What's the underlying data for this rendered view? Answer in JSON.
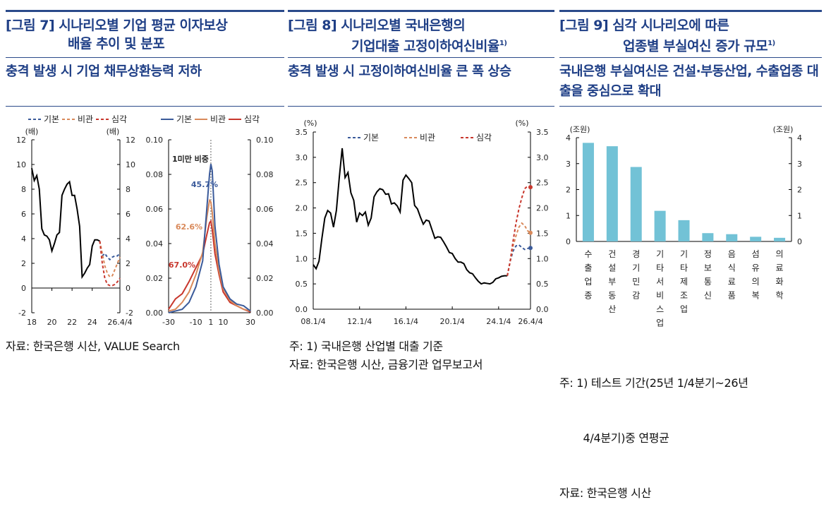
{
  "figures": [
    {
      "title_line1": "[그림 7] 시나리오별 기업 평균 이자보상",
      "title_line2": "배율 추이 및 분포",
      "title_sup": "",
      "subtitle": "충격 발생 시 기업 채무상환능력 저하",
      "notes": [
        "자료: 한국은행 시산, VALUE Search"
      ]
    },
    {
      "title_line1": "[그림 8] 시나리오별 국내은행의",
      "title_line2": "기업대출 고정이하여신비율",
      "title_sup": "1)",
      "subtitle": "충격 발생 시 고정이하여신비율 큰 폭 상승",
      "notes": [
        "주: 1) 국내은행 산업별 대출 기준",
        "자료: 한국은행 시산, 금융기관 업무보고서"
      ]
    },
    {
      "title_line1": "[그림 9] 심각 시나리오에 따른",
      "title_line2": "업종별 부실여신 증가 규모",
      "title_sup": "1)",
      "subtitle": "국내은행 부실여신은 건설·부동산업, 수출업종 대출을 중심으로 확대",
      "notes": [
        "주: 1) 테스트 기간(25년 1/4분기~26년",
        "       4/4분기)중 연평균",
        "자료: 한국은행 시산"
      ]
    }
  ],
  "colors": {
    "accent": "#2a4a8a",
    "base": "#3a5a9a",
    "pessimistic": "#d9895a",
    "severe": "#c8372d",
    "bar": "#72c2d6",
    "history": "#000000"
  },
  "chart_data": [
    {
      "type": "line",
      "unit_left": "(배)",
      "unit_right": "(배)",
      "ylim": [
        -2,
        12
      ],
      "yticks": [
        -2,
        0,
        2,
        4,
        6,
        8,
        10,
        12
      ],
      "xticks": [
        "18",
        "20",
        "22",
        "24",
        "26.4/4"
      ],
      "legend": [
        "기본",
        "비관",
        "심각"
      ],
      "legend_placement": "top",
      "history": {
        "start": "18.1/4",
        "values": [
          9.7,
          8.7,
          9.1,
          8.0,
          4.8,
          4.3,
          4.2,
          3.9,
          3.0,
          3.6,
          4.3,
          4.5,
          7.5,
          8.0,
          8.4,
          8.6,
          7.5,
          7.5,
          6.4,
          5.0,
          0.9,
          1.2,
          1.6,
          1.9,
          3.4,
          3.9,
          3.9,
          3.8
        ]
      },
      "series": [
        {
          "name": "기본",
          "start": "24.4/4",
          "values": [
            3.8,
            2.6,
            2.8,
            2.5,
            2.3,
            2.5,
            2.6,
            2.6,
            2.8
          ]
        },
        {
          "name": "비관",
          "start": "24.4/4",
          "values": [
            3.8,
            2.8,
            1.8,
            1.2,
            0.9,
            1.0,
            1.5,
            2.0,
            2.5
          ]
        },
        {
          "name": "심각",
          "start": "24.4/4",
          "values": [
            3.8,
            2.0,
            0.8,
            0.3,
            0.2,
            0.2,
            0.3,
            0.5,
            0.8
          ]
        }
      ]
    },
    {
      "type": "line",
      "ylim": [
        0,
        0.1
      ],
      "yticks": [
        "0.00",
        "0.02",
        "0.04",
        "0.06",
        "0.08",
        "0.10"
      ],
      "xlim": [
        -30,
        30
      ],
      "xticks": [
        -30,
        -10,
        1,
        10,
        30
      ],
      "legend": [
        "기본",
        "비관",
        "심각"
      ],
      "legend_placement": "top",
      "reference_line_x": 1,
      "annotations": {
        "title": "1미만 비중",
        "base": "45.7%",
        "pessimistic": "62.6%",
        "severe": "67.0%"
      },
      "x": [
        -30,
        -25,
        -20,
        -15,
        -10,
        -5,
        -2,
        0,
        1,
        2,
        4,
        7,
        10,
        15,
        20,
        25,
        30
      ],
      "series": [
        {
          "name": "기본",
          "values": [
            0,
            0.001,
            0.002,
            0.006,
            0.015,
            0.03,
            0.06,
            0.08,
            0.086,
            0.082,
            0.05,
            0.028,
            0.015,
            0.008,
            0.005,
            0.004,
            0.001
          ]
        },
        {
          "name": "비관",
          "values": [
            0.001,
            0.002,
            0.006,
            0.012,
            0.022,
            0.035,
            0.055,
            0.065,
            0.064,
            0.058,
            0.04,
            0.024,
            0.014,
            0.007,
            0.004,
            0.002,
            0.001
          ]
        },
        {
          "name": "심각",
          "values": [
            0.002,
            0.008,
            0.011,
            0.018,
            0.026,
            0.034,
            0.045,
            0.052,
            0.053,
            0.048,
            0.034,
            0.022,
            0.012,
            0.006,
            0.004,
            0.002,
            0.0005
          ]
        }
      ]
    },
    {
      "type": "line",
      "unit_left": "(%)",
      "unit_right": "(%)",
      "ylim": [
        0,
        3.5
      ],
      "yticks": [
        "0.0",
        "0.5",
        "1.0",
        "1.5",
        "2.0",
        "2.5",
        "3.0",
        "3.5"
      ],
      "xticks": [
        "08.1/4",
        "12.1/4",
        "16.1/4",
        "20.1/4",
        "24.1/4",
        "26.4/4"
      ],
      "legend": [
        "기본",
        "비관",
        "심각"
      ],
      "legend_placement": "top",
      "history": {
        "start": "08.1/4",
        "values": [
          0.88,
          0.8,
          0.95,
          1.4,
          1.8,
          1.95,
          1.9,
          1.62,
          1.95,
          2.6,
          3.18,
          2.6,
          2.7,
          2.3,
          2.15,
          1.72,
          1.9,
          1.85,
          1.92,
          1.66,
          1.8,
          2.22,
          2.32,
          2.38,
          2.36,
          2.27,
          2.28,
          2.08,
          2.1,
          2.04,
          1.92,
          2.55,
          2.65,
          2.58,
          2.5,
          2.05,
          1.98,
          1.82,
          1.68,
          1.76,
          1.74,
          1.57,
          1.4,
          1.43,
          1.42,
          1.33,
          1.23,
          1.12,
          1.1,
          1.0,
          0.93,
          0.93,
          0.9,
          0.78,
          0.72,
          0.7,
          0.62,
          0.55,
          0.5,
          0.52,
          0.51,
          0.5,
          0.53,
          0.6,
          0.62,
          0.65,
          0.66,
          0.66
        ]
      },
      "series": [
        {
          "name": "기본",
          "start": "24.4/4",
          "values": [
            0.66,
            0.95,
            1.15,
            1.25,
            1.27,
            1.22,
            1.18,
            1.2,
            1.21
          ]
        },
        {
          "name": "비관",
          "start": "24.4/4",
          "values": [
            0.66,
            0.95,
            1.25,
            1.45,
            1.62,
            1.7,
            1.65,
            1.55,
            1.51
          ]
        },
        {
          "name": "심각",
          "start": "24.4/4",
          "values": [
            0.66,
            0.95,
            1.35,
            1.7,
            1.98,
            2.2,
            2.38,
            2.43,
            2.41
          ]
        }
      ]
    },
    {
      "type": "bar",
      "unit_left": "(조원)",
      "unit_right": "(조원)",
      "ylim": [
        0,
        4
      ],
      "yticks": [
        0,
        1,
        2,
        3,
        4
      ],
      "categories": [
        "수출업종",
        "건설부동산",
        "경기민감",
        "기타서비스업",
        "기타제조업",
        "정보통신",
        "음식료품",
        "섬유의복",
        "의료화학"
      ],
      "values": [
        3.8,
        3.67,
        2.87,
        1.18,
        0.82,
        0.32,
        0.28,
        0.18,
        0.14
      ]
    }
  ]
}
